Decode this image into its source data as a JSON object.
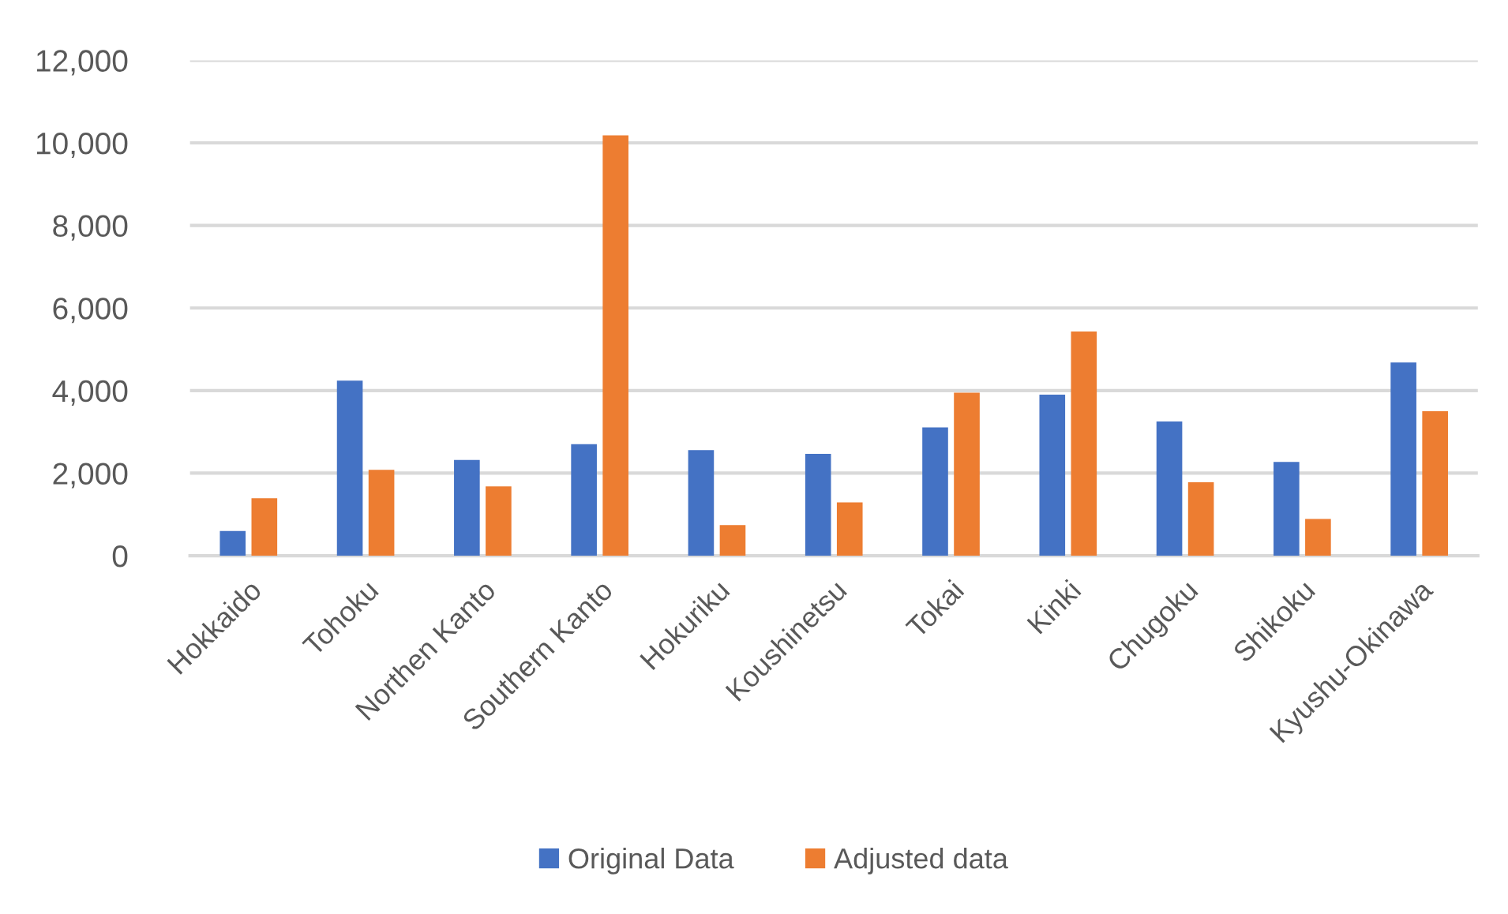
{
  "chart_data": {
    "type": "bar",
    "categories": [
      "Hokkaido",
      "Tohoku",
      "Northen Kanto",
      "Southern Kanto",
      "Hokuriku",
      "Koushinetsu",
      "Tokai",
      "Kinki",
      "Chugoku",
      "Shikoku",
      "Kyushu-Okinawa"
    ],
    "series": [
      {
        "name": "Original Data",
        "color": "#4472c4",
        "values": [
          600,
          4240,
          2320,
          2700,
          2560,
          2470,
          3110,
          3900,
          3250,
          2270,
          4680
        ]
      },
      {
        "name": "Adjusted data",
        "color": "#ed7d31",
        "values": [
          1390,
          2080,
          1680,
          10180,
          740,
          1290,
          3950,
          5430,
          1780,
          890,
          3500
        ]
      }
    ],
    "ylim": [
      0,
      12000
    ],
    "yticks": [
      0,
      {
        "value": 2000,
        "label": "2,000"
      },
      {
        "value": 4000,
        "label": "4,000"
      },
      {
        "value": 6000,
        "label": "6,000"
      },
      {
        "value": 8000,
        "label": "8,000"
      },
      {
        "value": 10000,
        "label": "10,000"
      },
      {
        "value": 12000,
        "label": "12,000"
      }
    ],
    "grid": "y",
    "legend": "bottom"
  }
}
